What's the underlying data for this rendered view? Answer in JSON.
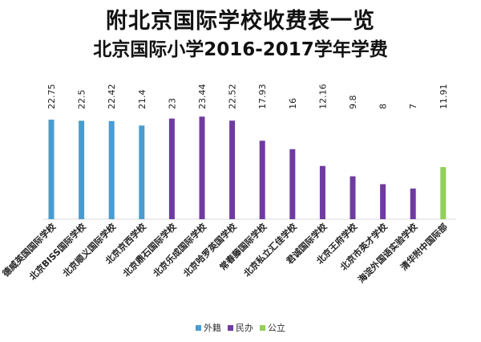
{
  "title": "附北京国际学校收费表一览",
  "chart_data": {
    "type": "bar",
    "title": "北京国际小学2016-2017学年学费",
    "xlabel": "",
    "ylabel": "",
    "ylim": [
      0,
      25
    ],
    "categories": [
      "德威英国国际学校",
      "北京BISS国际学校",
      "北京顺义国际学校",
      "北京京西学校",
      "北京鼎石国际学校",
      "北京乐成国际学校",
      "北京哈罗英国学校",
      "常春藤国际学校",
      "北京私立汇佳学校",
      "君诚国际学校",
      "北京王府学校",
      "北京市英才学校",
      "海淀外国语实验学校",
      "清华附中国际部"
    ],
    "values": [
      22.75,
      22.5,
      22.42,
      21.4,
      23,
      23.44,
      22.52,
      17.93,
      16,
      12.16,
      9.8,
      8,
      7,
      11.91
    ],
    "value_labels": [
      "22.75",
      "22.5",
      "22.42",
      "21.4",
      "23",
      "23.44",
      "22.52",
      "17.93",
      "16",
      "12.16",
      "9.8",
      "8",
      "7",
      "11.91"
    ],
    "groups": [
      "外籍",
      "外籍",
      "外籍",
      "外籍",
      "民办",
      "民办",
      "民办",
      "民办",
      "民办",
      "民办",
      "民办",
      "民办",
      "民办",
      "公立"
    ],
    "series": [
      {
        "name": "外籍",
        "color": "#4a9cd0"
      },
      {
        "name": "民办",
        "color": "#6f3ba1"
      },
      {
        "name": "公立",
        "color": "#92cf5b"
      }
    ],
    "legend_position": "bottom"
  }
}
